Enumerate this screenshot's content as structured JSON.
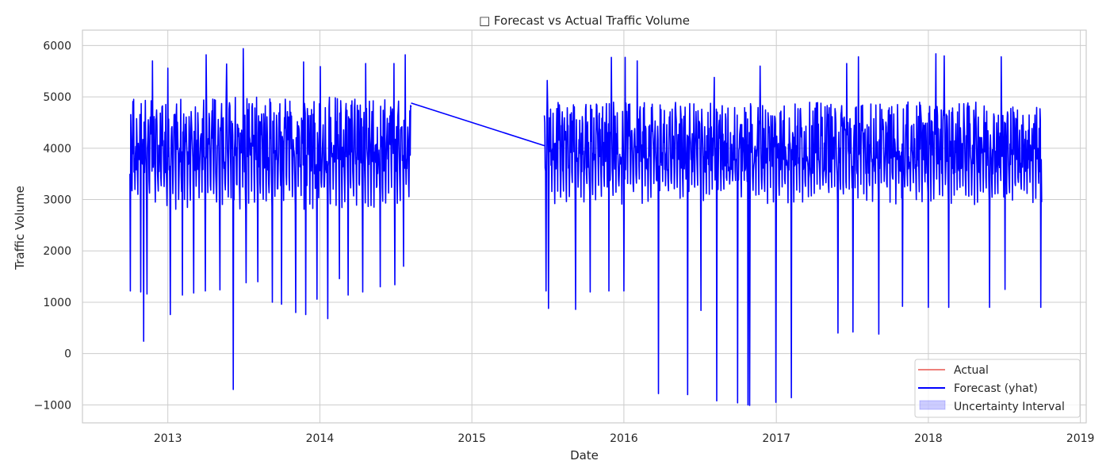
{
  "chart_data": {
    "type": "line",
    "title": "□ Forecast vs Actual Traffic Volume",
    "xlabel": "Date",
    "ylabel": "Traffic Volume",
    "xlim": [
      "2012-06-10",
      "2019-01-15"
    ],
    "ylim": [
      -1350,
      6300
    ],
    "grid": true,
    "legend_position": "lower-right",
    "x_ticks": [
      "2013",
      "2014",
      "2015",
      "2016",
      "2017",
      "2018",
      "2019"
    ],
    "y_ticks": [
      -1000,
      0,
      1000,
      2000,
      3000,
      4000,
      5000,
      6000
    ],
    "tick_label_texts": {
      "x": [
        "2013",
        "2014",
        "2015",
        "2016",
        "2017",
        "2018",
        "2019"
      ],
      "y": [
        "−1000",
        "0",
        "1000",
        "2000",
        "3000",
        "4000",
        "5000",
        "6000"
      ]
    },
    "colors": {
      "actual": "#e8574f",
      "forecast": "#0000ff",
      "interval": "#0000ff"
    },
    "series": [
      {
        "name": "Actual",
        "values": []
      },
      {
        "name": "Forecast (yhat)",
        "segments": [
          {
            "start": "2012-10-02",
            "end": "2014-08-08",
            "base_range": [
              2800,
              5000
            ],
            "dips": [
              [
                "2012-10-03",
                1220
              ],
              [
                "2012-10-28",
                1200
              ],
              [
                "2012-11-04",
                240
              ],
              [
                "2012-11-12",
                1160
              ],
              [
                "2013-01-07",
                760
              ],
              [
                "2013-02-05",
                1140
              ],
              [
                "2013-03-04",
                1180
              ],
              [
                "2013-04-01",
                1220
              ],
              [
                "2013-05-06",
                1240
              ],
              [
                "2013-06-07",
                -700
              ],
              [
                "2013-07-08",
                1380
              ],
              [
                "2013-08-05",
                1400
              ],
              [
                "2013-09-09",
                1000
              ],
              [
                "2013-10-01",
                960
              ],
              [
                "2013-11-04",
                800
              ],
              [
                "2013-11-28",
                760
              ],
              [
                "2013-12-25",
                1060
              ],
              [
                "2014-01-20",
                680
              ],
              [
                "2014-02-17",
                1460
              ],
              [
                "2014-03-10",
                1140
              ],
              [
                "2014-04-14",
                1200
              ],
              [
                "2014-05-26",
                1300
              ],
              [
                "2014-06-30",
                1340
              ],
              [
                "2014-07-21",
                1700
              ]
            ],
            "peaks": [
              [
                "2012-11-25",
                5700
              ],
              [
                "2013-01-01",
                5560
              ],
              [
                "2013-04-03",
                5820
              ],
              [
                "2013-05-22",
                5640
              ],
              [
                "2013-07-01",
                5940
              ],
              [
                "2013-11-23",
                5680
              ],
              [
                "2014-01-02",
                5590
              ],
              [
                "2014-04-21",
                5650
              ],
              [
                "2014-06-28",
                5650
              ],
              [
                "2014-07-25",
                5820
              ]
            ]
          },
          {
            "start": "2015-06-24",
            "end": "2018-09-30",
            "base_range": [
              2900,
              4900
            ],
            "dips": [
              [
                "2015-06-28",
                1220
              ],
              [
                "2015-07-04",
                880
              ],
              [
                "2015-09-07",
                860
              ],
              [
                "2015-10-12",
                1200
              ],
              [
                "2015-11-26",
                1220
              ],
              [
                "2016-01-01",
                1220
              ],
              [
                "2016-03-24",
                -780
              ],
              [
                "2016-06-02",
                -800
              ],
              [
                "2016-07-04",
                840
              ],
              [
                "2016-08-11",
                -920
              ],
              [
                "2016-09-30",
                -960
              ],
              [
                "2016-10-25",
                -1000
              ],
              [
                "2016-10-29",
                -1010
              ],
              [
                "2016-12-31",
                -950
              ],
              [
                "2017-02-06",
                -860
              ],
              [
                "2017-05-29",
                400
              ],
              [
                "2017-07-04",
                420
              ],
              [
                "2017-09-04",
                380
              ],
              [
                "2017-10-31",
                920
              ],
              [
                "2018-01-01",
                900
              ],
              [
                "2018-02-19",
                900
              ],
              [
                "2018-05-28",
                900
              ],
              [
                "2018-07-04",
                1250
              ],
              [
                "2018-09-28",
                900
              ]
            ],
            "peaks": [
              [
                "2015-07-01",
                5320
              ],
              [
                "2015-12-02",
                5770
              ],
              [
                "2016-01-04",
                5770
              ],
              [
                "2016-02-02",
                5700
              ],
              [
                "2016-08-05",
                5380
              ],
              [
                "2016-11-23",
                5600
              ],
              [
                "2017-06-19",
                5650
              ],
              [
                "2017-07-17",
                5780
              ],
              [
                "2018-01-19",
                5840
              ],
              [
                "2018-02-08",
                5800
              ],
              [
                "2018-06-25",
                5780
              ]
            ]
          }
        ],
        "bridge": [
          [
            "2014-08-08",
            4880
          ],
          [
            "2015-06-24",
            4050
          ]
        ]
      },
      {
        "name": "Uncertainty Interval",
        "values": []
      }
    ]
  },
  "legend": {
    "items": [
      {
        "label": "Actual"
      },
      {
        "label": "Forecast (yhat)"
      },
      {
        "label": "Uncertainty Interval"
      }
    ]
  }
}
